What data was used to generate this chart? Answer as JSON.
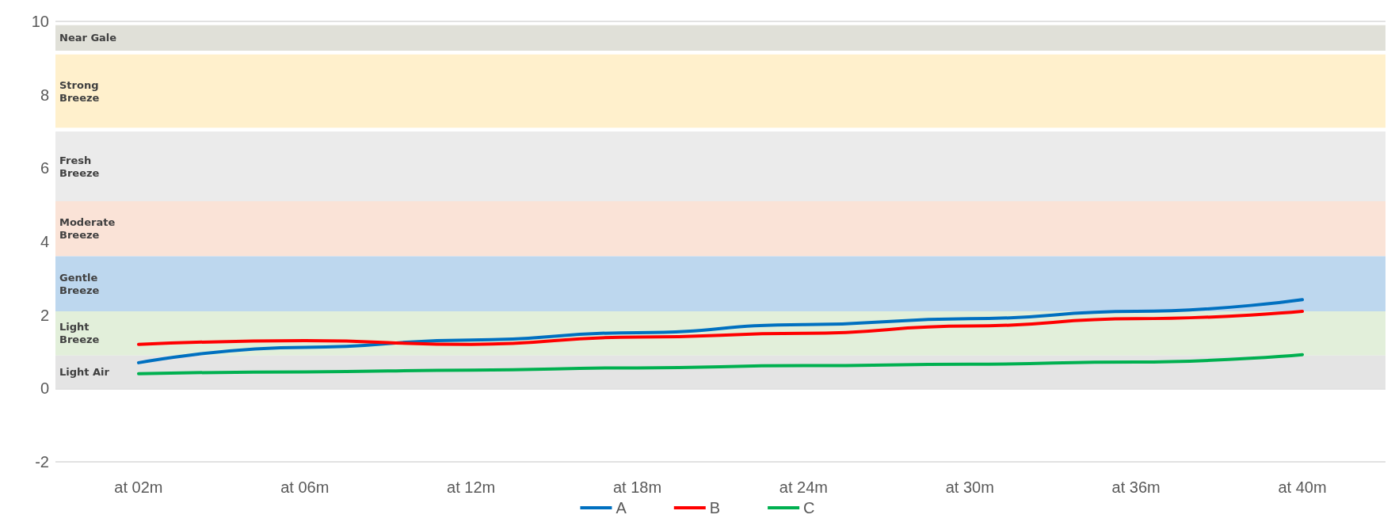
{
  "chart_data": {
    "type": "line",
    "categories": [
      "at 02m",
      "at 06m",
      "at 12m",
      "at 18m",
      "at 24m",
      "at 30m",
      "at 36m",
      "at 40m"
    ],
    "series": [
      {
        "name": "A",
        "color": "#0070c0",
        "values": [
          0.7,
          1.12,
          1.32,
          1.52,
          1.74,
          1.9,
          2.1,
          2.42
        ]
      },
      {
        "name": "B",
        "color": "#ff0000",
        "values": [
          1.2,
          1.3,
          1.2,
          1.4,
          1.5,
          1.7,
          1.9,
          2.1
        ]
      },
      {
        "name": "C",
        "color": "#00b050",
        "values": [
          0.4,
          0.45,
          0.5,
          0.56,
          0.62,
          0.66,
          0.72,
          0.92
        ]
      }
    ],
    "ylim": [
      -2,
      10
    ],
    "yticks": [
      -2,
      0,
      2,
      4,
      6,
      8,
      10
    ],
    "grid": "y",
    "legend": "bottom",
    "marker": "none",
    "line_style": "solid",
    "bands": [
      {
        "axis": "y",
        "from": 9.2,
        "to": 9.9,
        "label": "Near Gale",
        "color": "#e0e0d8"
      },
      {
        "axis": "y",
        "from": 7.1,
        "to": 9.1,
        "label": "Strong Breeze",
        "color": "#fff0cc"
      },
      {
        "axis": "y",
        "from": 5.1,
        "to": 7.0,
        "label": "Fresh Breeze",
        "color": "#ebebeb"
      },
      {
        "axis": "y",
        "from": 3.6,
        "to": 5.1,
        "label": "Moderate Breeze",
        "color": "#fae3d7"
      },
      {
        "axis": "y",
        "from": 2.1,
        "to": 3.6,
        "label": "Gentle Breeze",
        "color": "#bdd7ee"
      },
      {
        "axis": "y",
        "from": 0.9,
        "to": 2.1,
        "label": "Light Breeze",
        "color": "#e2efda"
      },
      {
        "axis": "y",
        "from": 0,
        "to": 0.9,
        "label": "Light Air",
        "color": "#e4e4e4"
      }
    ]
  }
}
